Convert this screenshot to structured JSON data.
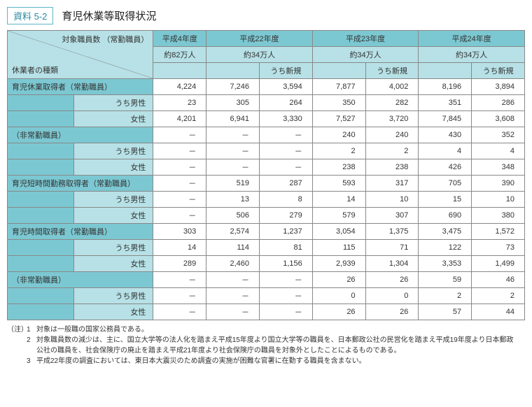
{
  "header": {
    "tag": "資料 5-2",
    "title": "育児休業等取得状況"
  },
  "years": {
    "h4": {
      "label": "平成4年度",
      "staff": "約82万人"
    },
    "h22": {
      "label": "平成22年度",
      "staff": "約34万人",
      "sub": "うち新規"
    },
    "h23": {
      "label": "平成23年度",
      "staff": "約34万人",
      "sub": "うち新規"
    },
    "h24": {
      "label": "平成24年度",
      "staff": "約34万人",
      "sub": "うち新規"
    }
  },
  "corner": {
    "top": "対象職員数\n（常勤職員）",
    "bottom": "休業者の種類"
  },
  "rows": {
    "g1": {
      "label": "育児休業取得者（常勤職員）",
      "t": [
        "4,224",
        "7,246",
        "3,594",
        "7,877",
        "4,002",
        "8,196",
        "3,894"
      ],
      "m": [
        "23",
        "305",
        "264",
        "350",
        "282",
        "351",
        "286"
      ],
      "f": [
        "4,201",
        "6,941",
        "3,330",
        "7,527",
        "3,720",
        "7,845",
        "3,608"
      ]
    },
    "g2": {
      "label": "（非常勤職員）",
      "t": [
        "－",
        "－",
        "－",
        "240",
        "240",
        "430",
        "352"
      ],
      "m": [
        "－",
        "－",
        "－",
        "2",
        "2",
        "4",
        "4"
      ],
      "f": [
        "－",
        "－",
        "－",
        "238",
        "238",
        "426",
        "348"
      ]
    },
    "g3": {
      "label": "育児短時間勤務取得者（常勤職員）",
      "t": [
        "－",
        "519",
        "287",
        "593",
        "317",
        "705",
        "390"
      ],
      "m": [
        "－",
        "13",
        "8",
        "14",
        "10",
        "15",
        "10"
      ],
      "f": [
        "－",
        "506",
        "279",
        "579",
        "307",
        "690",
        "380"
      ]
    },
    "g4": {
      "label": "育児時間取得者（常勤職員）",
      "t": [
        "303",
        "2,574",
        "1,237",
        "3,054",
        "1,375",
        "3,475",
        "1,572"
      ],
      "m": [
        "14",
        "114",
        "81",
        "115",
        "71",
        "122",
        "73"
      ],
      "f": [
        "289",
        "2,460",
        "1,156",
        "2,939",
        "1,304",
        "3,353",
        "1,499"
      ]
    },
    "g5": {
      "label": "（非常勤職員）",
      "t": [
        "－",
        "－",
        "－",
        "26",
        "26",
        "59",
        "46"
      ],
      "m": [
        "－",
        "－",
        "－",
        "0",
        "0",
        "2",
        "2"
      ],
      "f": [
        "－",
        "－",
        "－",
        "26",
        "26",
        "57",
        "44"
      ]
    }
  },
  "sublabels": {
    "male": "うち男性",
    "female": "女性"
  },
  "notes": {
    "lbl": "（注）",
    "n1": "対象は一般職の国家公務員である。",
    "n2": "対象職員数の減少は、主に、国立大学等の法人化を踏まえ平成15年度より国立大学等の職員を、日本郵政公社の民営化を踏まえ平成19年度より日本郵政公社の職員を、社会保険庁の廃止を踏まえ平成21年度より社会保険庁の職員を対象外としたことによるものである。",
    "n3": "平成22年度の調査においては、東日本大震災のため調査の実施が困難な官署に在勤する職員を含まない。"
  }
}
